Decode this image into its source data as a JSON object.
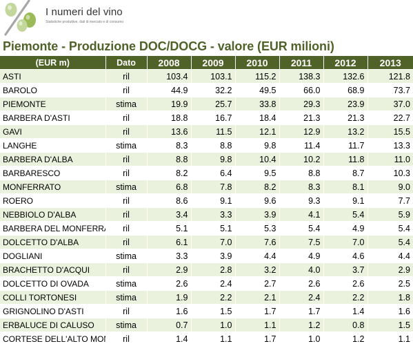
{
  "header": {
    "brand": "I numeri del vino",
    "tagline": "Statistiche produttive, dati di mercato e di consumo"
  },
  "title": "Piemonte - Produzione DOC/DOCG - valore (EUR milioni)",
  "table": {
    "headers": {
      "name": "(EUR m)",
      "dato": "Dato",
      "years": [
        "2008",
        "2009",
        "2010",
        "2011",
        "2012",
        "2013"
      ]
    },
    "rows": [
      {
        "name": "ASTI",
        "dato": "ril",
        "values": [
          "103.4",
          "103.1",
          "115.2",
          "138.3",
          "132.6",
          "121.8"
        ]
      },
      {
        "name": "BAROLO",
        "dato": "ril",
        "values": [
          "44.9",
          "32.2",
          "49.5",
          "66.0",
          "68.9",
          "73.7"
        ]
      },
      {
        "name": "PIEMONTE",
        "dato": "stima",
        "values": [
          "19.9",
          "25.7",
          "33.8",
          "29.3",
          "23.9",
          "37.0"
        ]
      },
      {
        "name": "BARBERA D'ASTI",
        "dato": "ril",
        "values": [
          "18.8",
          "16.7",
          "18.4",
          "21.3",
          "21.3",
          "22.7"
        ]
      },
      {
        "name": "GAVI",
        "dato": "ril",
        "values": [
          "13.6",
          "11.5",
          "12.1",
          "12.9",
          "13.2",
          "15.5"
        ]
      },
      {
        "name": "LANGHE",
        "dato": "stima",
        "values": [
          "8.3",
          "8.8",
          "9.8",
          "11.4",
          "11.7",
          "13.3"
        ]
      },
      {
        "name": "BARBERA D'ALBA",
        "dato": "ril",
        "values": [
          "8.8",
          "9.8",
          "10.4",
          "10.2",
          "11.8",
          "11.0"
        ]
      },
      {
        "name": "BARBARESCO",
        "dato": "ril",
        "values": [
          "8.2",
          "6.4",
          "9.5",
          "8.8",
          "8.7",
          "10.3"
        ]
      },
      {
        "name": "MONFERRATO",
        "dato": "stima",
        "values": [
          "6.8",
          "7.8",
          "8.2",
          "8.3",
          "8.1",
          "9.0"
        ]
      },
      {
        "name": "ROERO",
        "dato": "ril",
        "values": [
          "8.6",
          "9.1",
          "9.6",
          "9.3",
          "9.1",
          "7.7"
        ]
      },
      {
        "name": "NEBBIOLO D'ALBA",
        "dato": "ril",
        "values": [
          "3.4",
          "3.3",
          "3.9",
          "4.1",
          "5.4",
          "5.9"
        ]
      },
      {
        "name": "BARBERA DEL MONFERRA",
        "dato": "ril",
        "values": [
          "5.1",
          "5.1",
          "5.3",
          "5.4",
          "4.9",
          "5.4"
        ]
      },
      {
        "name": "DOLCETTO D'ALBA",
        "dato": "ril",
        "values": [
          "6.1",
          "7.0",
          "7.6",
          "7.5",
          "7.0",
          "5.4"
        ]
      },
      {
        "name": "DOGLIANI",
        "dato": "stima",
        "values": [
          "3.3",
          "3.9",
          "4.4",
          "4.9",
          "4.6",
          "4.4"
        ]
      },
      {
        "name": "BRACHETTO D'ACQUI",
        "dato": "ril",
        "values": [
          "2.9",
          "2.8",
          "3.2",
          "4.0",
          "3.7",
          "2.9"
        ]
      },
      {
        "name": "DOLCETTO DI OVADA",
        "dato": "stima",
        "values": [
          "2.6",
          "2.4",
          "2.7",
          "2.6",
          "2.6",
          "2.5"
        ]
      },
      {
        "name": "COLLI TORTONESI",
        "dato": "stima",
        "values": [
          "1.9",
          "2.2",
          "2.1",
          "2.4",
          "2.2",
          "1.8"
        ]
      },
      {
        "name": "GRIGNOLINO D'ASTI",
        "dato": "ril",
        "values": [
          "1.6",
          "1.5",
          "1.7",
          "1.7",
          "1.4",
          "1.6"
        ]
      },
      {
        "name": "ERBALUCE DI CALUSO",
        "dato": "stima",
        "values": [
          "0.7",
          "1.0",
          "1.1",
          "1.2",
          "0.8",
          "1.5"
        ]
      },
      {
        "name": "CORTESE DELL'ALTO MON",
        "dato": "ril",
        "values": [
          "1.4",
          "1.1",
          "1.7",
          "1.0",
          "1.2",
          "1.1"
        ]
      }
    ]
  }
}
